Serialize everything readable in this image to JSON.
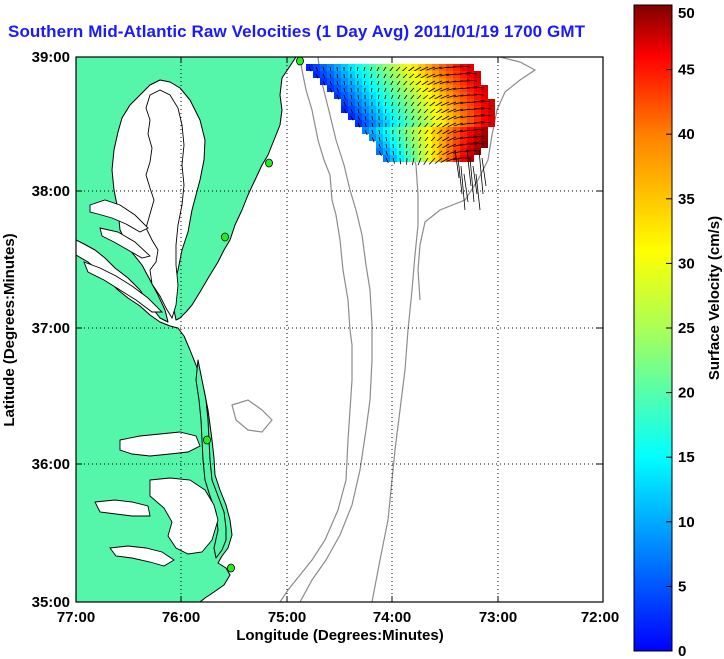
{
  "title": "Southern Mid-Atlantic Raw Velocities (1 Day Avg) 2011/01/19 1700 GMT",
  "map": {
    "xlabel": "Longitude (Degrees:Minutes)",
    "ylabel": "Latitude (Degrees:Minutes)",
    "x_ticks": [
      "77:00",
      "76:00",
      "75:00",
      "74:00",
      "73:00",
      "72:00"
    ],
    "y_ticks": [
      "39:00",
      "38:00",
      "37:00",
      "36:00",
      "35:00"
    ],
    "lon_range": [
      -77,
      -72
    ],
    "lat_range": [
      35,
      39
    ],
    "grid": "dotted",
    "land_color": "#55f5aa",
    "coast_color": "#000000",
    "bathymetry_color": "#8c8c8c",
    "station_color": "#22ee22"
  },
  "colorbar": {
    "label": "Surface Velocity (cm/s)",
    "ticks": [
      "0",
      "5",
      "10",
      "15",
      "20",
      "25",
      "30",
      "35",
      "40",
      "45",
      "50"
    ],
    "range": [
      0,
      50
    ],
    "colormap": "jet"
  }
}
